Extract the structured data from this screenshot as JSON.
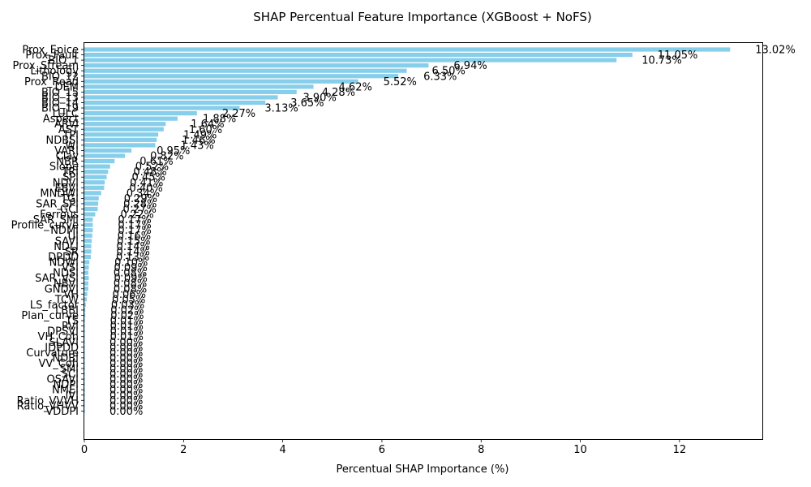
{
  "chart_data": {
    "type": "bar",
    "orientation": "horizontal",
    "title": "SHAP Percentual Feature Importance (XGBoost + NoFS)",
    "xlabel": "Percentual SHAP Importance (%)",
    "ylabel": "",
    "xlim": [
      0,
      13.67
    ],
    "xticks": [
      0,
      2,
      4,
      6,
      8,
      10,
      12
    ],
    "grid": false,
    "bar_color": "#87ceeb",
    "categories": [
      "Prox_Epice",
      "Prox_Fault",
      "BIO_1",
      "Prox_Stream",
      "Lithology",
      "BIO_12",
      "Prox_Road",
      "DEM",
      "BIO_15",
      "BIO_13",
      "BIO_14",
      "BIO_19",
      "LULC",
      "Aspect",
      "ARVI",
      "AST",
      "TPI",
      "NDBSI",
      "WI",
      "VARI",
      "Clay",
      "NBR",
      "Slope",
      "TRI",
      "SPI",
      "NDVI",
      "EBVI",
      "MNDWI",
      "TGI",
      "SAR_SPI",
      "GCI",
      "Ferrous",
      "SAR_SMI",
      "Profile_curve",
      "NDMI",
      "UI",
      "SAVI",
      "NDLI",
      "SR",
      "DPDD",
      "NDWI",
      "VSI",
      "NDSI",
      "SAR_VSI",
      "NBVI",
      "GNDVI",
      "VH",
      "TCW",
      "LS_factor",
      "LBBI",
      "Plan_curve",
      "TS",
      "RVI",
      "DPSVI",
      "VH_Coh",
      "SLAVI",
      "IDPDD",
      "Curvature",
      "NDBI",
      "VV_Coh",
      "SMI",
      "SCI",
      "OSAVI",
      "NDPI",
      "NMEI",
      "IVI",
      "Ratio_VVVH",
      "Ratio_VHVV",
      "VDDPI"
    ],
    "values": [
      13.02,
      11.05,
      10.73,
      6.94,
      6.5,
      6.33,
      5.52,
      4.62,
      4.28,
      3.9,
      3.65,
      3.13,
      2.27,
      1.88,
      1.64,
      1.6,
      1.49,
      1.46,
      1.43,
      0.95,
      0.82,
      0.61,
      0.52,
      0.48,
      0.45,
      0.41,
      0.4,
      0.34,
      0.29,
      0.28,
      0.27,
      0.22,
      0.17,
      0.17,
      0.17,
      0.16,
      0.15,
      0.14,
      0.14,
      0.13,
      0.1,
      0.09,
      0.08,
      0.09,
      0.08,
      0.08,
      0.06,
      0.05,
      0.03,
      0.02,
      0.02,
      0.01,
      0.01,
      0.01,
      0.01,
      0.0,
      0.0,
      0.0,
      0.0,
      0.0,
      0.0,
      0.0,
      0.0,
      0.0,
      0.0,
      0.0,
      0.0,
      0.0,
      0.0
    ],
    "data_labels": [
      "13.02%",
      "11.05%",
      "10.73%",
      "6.94%",
      "6.50%",
      "6.33%",
      "5.52%",
      "4.62%",
      "4.28%",
      "3.90%",
      "3.65%",
      "3.13%",
      "2.27%",
      "1.88%",
      "1.64%",
      "1.60%",
      "1.49%",
      "1.46%",
      "1.43%",
      "0.95%",
      "0.82%",
      "0.61%",
      "0.52%",
      "0.48%",
      "0.45%",
      "0.41%",
      "0.40%",
      "0.34%",
      "0.29%",
      "0.28%",
      "0.27%",
      "0.22%",
      "0.17%",
      "0.17%",
      "0.17%",
      "0.16%",
      "0.15%",
      "0.14%",
      "0.14%",
      "0.13%",
      "0.10%",
      "0.09%",
      "0.08%",
      "0.09%",
      "0.08%",
      "0.08%",
      "0.06%",
      "0.05%",
      "0.03%",
      "0.02%",
      "0.02%",
      "0.01%",
      "0.01%",
      "0.01%",
      "0.01%",
      "0.00%",
      "0.00%",
      "0.00%",
      "0.00%",
      "0.00%",
      "0.00%",
      "0.00%",
      "0.00%",
      "0.00%",
      "0.00%",
      "0.00%",
      "0.00%",
      "0.00%",
      "0.00%"
    ]
  }
}
